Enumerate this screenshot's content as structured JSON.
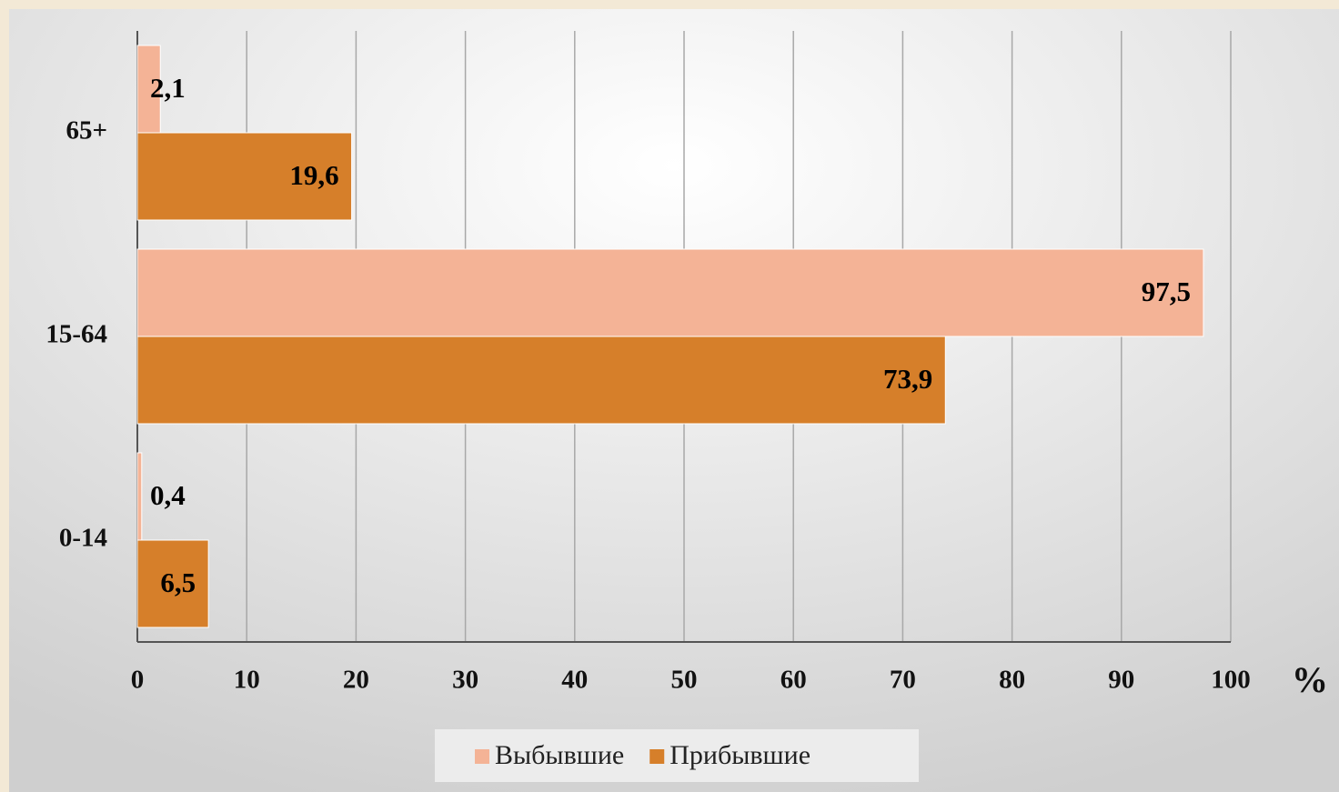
{
  "chart_data": {
    "type": "barh",
    "categories": [
      "0-14",
      "15-64",
      "65+"
    ],
    "series": [
      {
        "name": "Выбывшие",
        "color": "#f4b396",
        "values": [
          0.4,
          97.5,
          2.1
        ],
        "value_labels": [
          "0,4",
          "97,5",
          "2,1"
        ]
      },
      {
        "name": "Прибывшие",
        "color": "#d67f2a",
        "values": [
          6.5,
          73.9,
          19.6
        ],
        "value_labels": [
          "6,5",
          "73,9",
          "19,6"
        ]
      }
    ],
    "x_label": "%",
    "xlim": [
      0,
      100
    ],
    "xticks": [
      0,
      10,
      20,
      30,
      40,
      50,
      60,
      70,
      80,
      90,
      100
    ],
    "grid": true,
    "legend": "bottom"
  }
}
